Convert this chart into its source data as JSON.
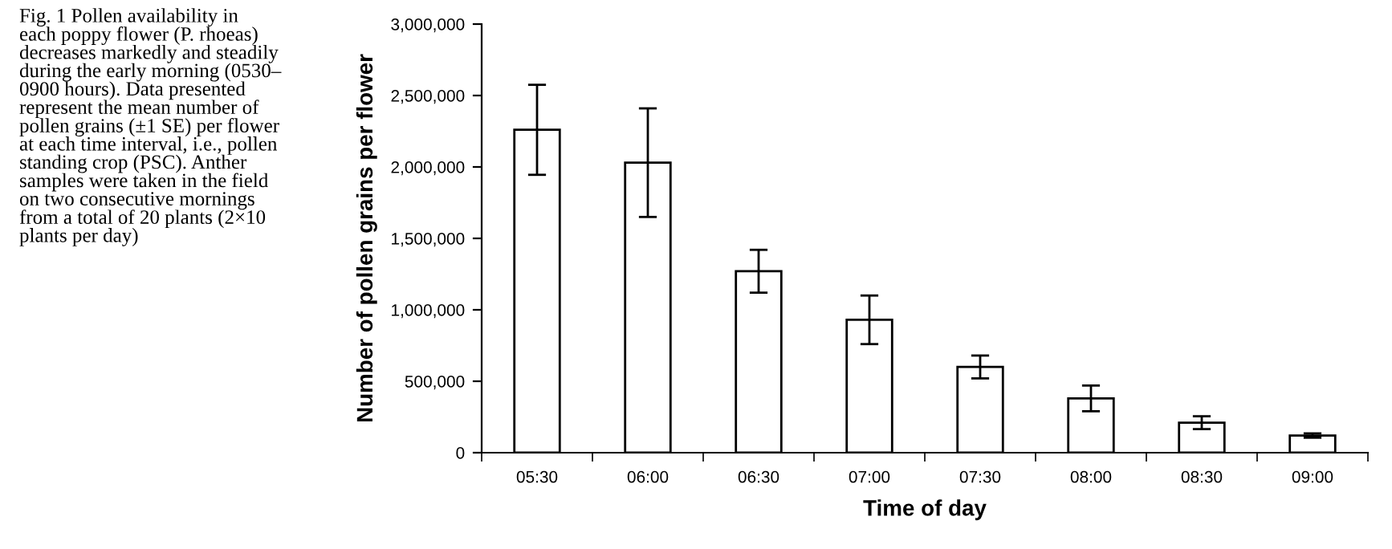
{
  "chart_data": {
    "type": "bar",
    "xlabel": "Time of day",
    "ylabel": "Number of pollen grains per flower",
    "annotations": [
      "Fig. 1 Pollen availability in\neach poppy flower (P. rhoeas)\ndecreases markedly and steadily\nduring the early morning (0530–\n0900 hours). Data presented\nrepresent the mean number of\npollen grains (±1 SE) per flower\nat each time interval, i.e., pollen\nstanding crop (PSC). Anther\nsamples were taken in the field\non two consecutive mornings\nfrom a total of 20 plants (2×10\nplants per day)"
    ],
    "categories": [
      "05:30",
      "06:00",
      "06:30",
      "07:00",
      "07:30",
      "08:00",
      "08:30",
      "09:00"
    ],
    "values": [
      2260000,
      2030000,
      1270000,
      930000,
      600000,
      380000,
      210000,
      120000
    ],
    "errors": [
      315000,
      380000,
      150000,
      170000,
      80000,
      90000,
      45000,
      15000
    ],
    "color": "#ffffff",
    "ylim": [
      0,
      3000000
    ],
    "yticks": [
      {
        "value": 0,
        "label": "0"
      },
      {
        "value": 500000,
        "label": "500,000"
      },
      {
        "value": 1000000,
        "label": "1,000,000"
      },
      {
        "value": 1500000,
        "label": "1,500,000"
      },
      {
        "value": 2000000,
        "label": "2,000,000"
      },
      {
        "value": 2500000,
        "label": "2,500,000"
      },
      {
        "value": 3000000,
        "label": "3,000,000"
      }
    ],
    "grid": false,
    "legend": false
  }
}
